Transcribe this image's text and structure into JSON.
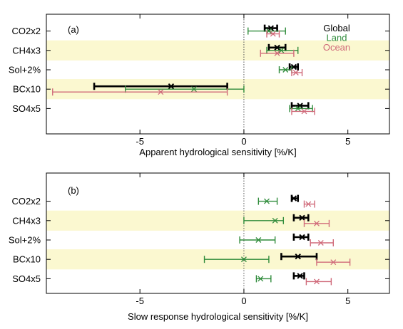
{
  "colors": {
    "global": "#000000",
    "land": "#2e8b3a",
    "ocean": "#d06a7a",
    "band": "#fbf8d0"
  },
  "chart_data": [
    {
      "type": "errorbar",
      "panel_label": "(a)",
      "xlabel": "Apparent hydrological sensitivity [%/K]",
      "xlim": [
        -9.5,
        7
      ],
      "xticks": [
        -5,
        0,
        5
      ],
      "x_tick_labels": [
        "-5",
        "0",
        "5"
      ],
      "zero_line": true,
      "categories": [
        "CO2x2",
        "CH4x3",
        "Sol+2%",
        "BCx10",
        "SO4x5"
      ],
      "shaded_rows": [
        "CH4x3",
        "BCx10"
      ],
      "legend": {
        "position": "top-right",
        "entries": [
          "Global",
          "Land",
          "Ocean"
        ]
      },
      "series": [
        {
          "name": "Global",
          "color_key": "global",
          "points": [
            {
              "x": 1.3,
              "lo": 1.0,
              "hi": 1.6
            },
            {
              "x": 1.6,
              "lo": 1.2,
              "hi": 2.0
            },
            {
              "x": 2.4,
              "lo": 2.2,
              "hi": 2.6
            },
            {
              "x": -3.5,
              "lo": -7.2,
              "hi": -0.8
            },
            {
              "x": 2.7,
              "lo": 2.3,
              "hi": 3.1
            }
          ]
        },
        {
          "name": "Land",
          "color_key": "land",
          "points": [
            {
              "x": 1.2,
              "lo": 0.2,
              "hi": 2.0
            },
            {
              "x": 1.8,
              "lo": 1.1,
              "hi": 2.6
            },
            {
              "x": 2.0,
              "lo": 1.7,
              "hi": 2.3
            },
            {
              "x": -2.4,
              "lo": -5.7,
              "hi": 0.0
            },
            {
              "x": 2.6,
              "lo": 2.2,
              "hi": 3.3
            }
          ]
        },
        {
          "name": "Ocean",
          "color_key": "ocean",
          "points": [
            {
              "x": 1.4,
              "lo": 1.1,
              "hi": 1.7
            },
            {
              "x": 1.6,
              "lo": 0.8,
              "hi": 2.4
            },
            {
              "x": 2.5,
              "lo": 2.3,
              "hi": 2.8
            },
            {
              "x": -4.0,
              "lo": -9.2,
              "hi": -0.8
            },
            {
              "x": 2.9,
              "lo": 2.3,
              "hi": 3.4
            }
          ]
        }
      ]
    },
    {
      "type": "errorbar",
      "panel_label": "(b)",
      "xlabel": "Slow response hydrological sensitivity [%/K]",
      "xlim": [
        -9.5,
        7
      ],
      "xticks": [
        -5,
        0,
        5
      ],
      "x_tick_labels": [
        "-5",
        "0",
        "5"
      ],
      "zero_line": true,
      "categories": [
        "CO2x2",
        "CH4x3",
        "Sol+2%",
        "BCx10",
        "SO4x5"
      ],
      "shaded_rows": [
        "CH4x3",
        "BCx10"
      ],
      "series": [
        {
          "name": "Global",
          "color_key": "global",
          "points": [
            {
              "x": 2.4,
              "lo": 2.3,
              "hi": 2.6
            },
            {
              "x": 2.8,
              "lo": 2.4,
              "hi": 3.1
            },
            {
              "x": 2.8,
              "lo": 2.4,
              "hi": 3.1
            },
            {
              "x": 2.6,
              "lo": 1.8,
              "hi": 3.5
            },
            {
              "x": 2.7,
              "lo": 2.4,
              "hi": 2.9
            }
          ]
        },
        {
          "name": "Land",
          "color_key": "land",
          "points": [
            {
              "x": 1.1,
              "lo": 0.7,
              "hi": 1.6
            },
            {
              "x": 1.5,
              "lo": 0.0,
              "hi": 1.9
            },
            {
              "x": 0.7,
              "lo": -0.2,
              "hi": 1.5
            },
            {
              "x": 0.0,
              "lo": -1.9,
              "hi": 1.2
            },
            {
              "x": 0.8,
              "lo": 0.6,
              "hi": 1.3
            }
          ]
        },
        {
          "name": "Ocean",
          "color_key": "ocean",
          "points": [
            {
              "x": 3.1,
              "lo": 2.9,
              "hi": 3.4
            },
            {
              "x": 3.5,
              "lo": 2.9,
              "hi": 4.1
            },
            {
              "x": 3.7,
              "lo": 3.2,
              "hi": 4.3
            },
            {
              "x": 4.3,
              "lo": 3.5,
              "hi": 5.1
            },
            {
              "x": 3.5,
              "lo": 3.0,
              "hi": 4.2
            }
          ]
        }
      ]
    }
  ]
}
